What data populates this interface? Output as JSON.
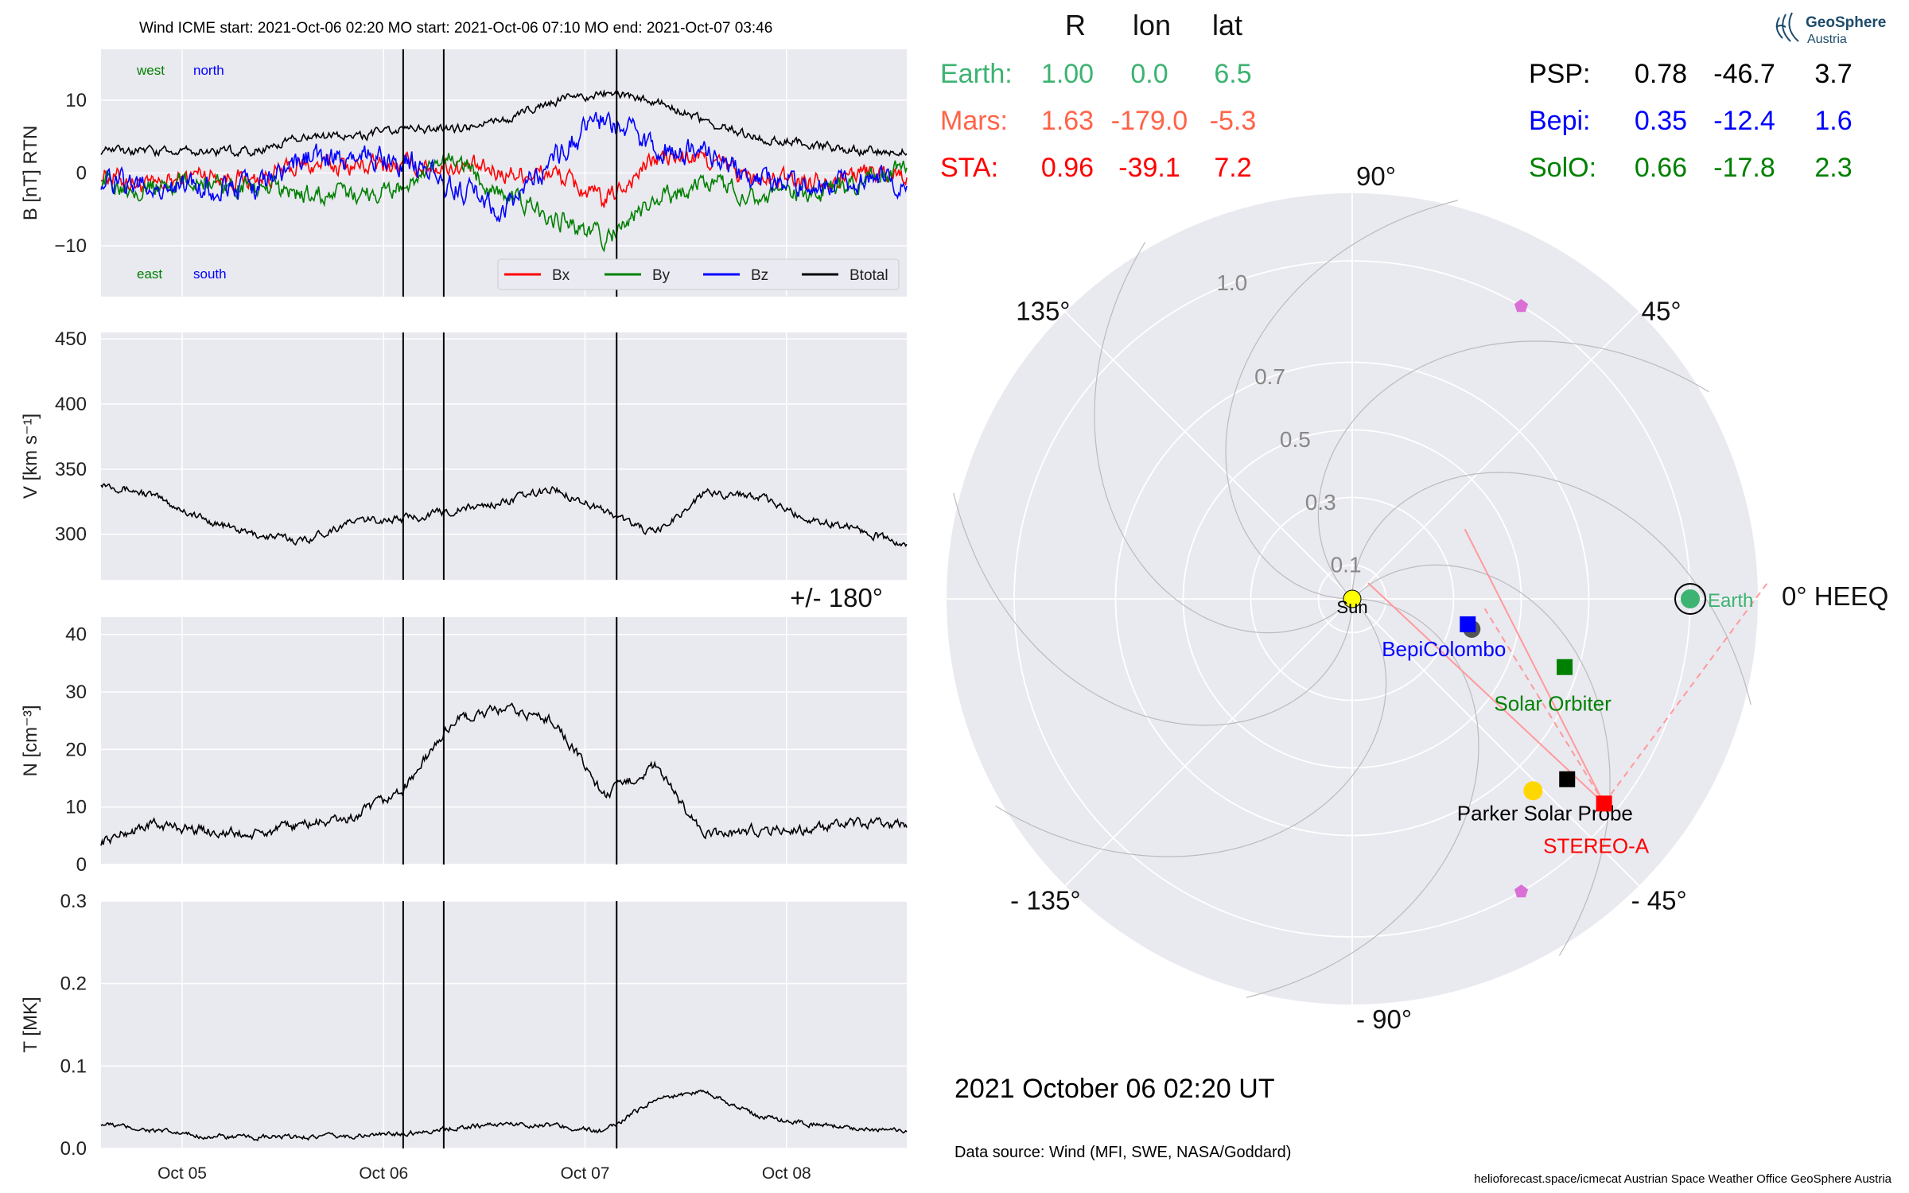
{
  "header": {
    "title": "Wind    ICME start: 2021-Oct-06 02:20   MO start: 2021-Oct-06 07:10   MO end: 2021-Oct-07 03:46"
  },
  "logo": {
    "line1": "GeoSphere",
    "line2": "Austria",
    "icon": "geosphere-swirl-icon"
  },
  "colors": {
    "panel_bg": "#e9e9f0",
    "grid": "#ffffff",
    "bx": "#ff0000",
    "by": "#008000",
    "bz": "#0000ff",
    "btotal": "#000000",
    "earth": "#3cb371",
    "mars": "#ff6347",
    "sta": "#ff0000",
    "psp": "#000000",
    "bepi": "#0000ff",
    "solo": "#008000",
    "sun": "#ffff00",
    "psp_marker": "#ffd700",
    "polar_grid": "#bbbbbb",
    "pentagon": "#da70d6"
  },
  "event_times": [
    "2021-10-06T02:20",
    "2021-10-06T07:10",
    "2021-10-07T03:46"
  ],
  "chart_data": [
    {
      "type": "line",
      "title": "B RTN",
      "ylabel": "B [nT] RTN",
      "xlabels": [
        "Oct 05",
        "Oct 06",
        "Oct 07",
        "Oct 08"
      ],
      "xrange": [
        "2021-10-04T14:20",
        "2021-10-08T14:20"
      ],
      "ylim": [
        -17,
        17
      ],
      "yticks": [
        10,
        0,
        -10
      ],
      "ytick_labels": [
        "10",
        "0",
        "−10"
      ],
      "corner_labels": {
        "west": "west",
        "north": "north",
        "east": "east",
        "south": "south"
      },
      "legend_position": "bottom-right",
      "x_hours": [
        0,
        6,
        12,
        18,
        24,
        30,
        36,
        42,
        48,
        54,
        60,
        66,
        72,
        78,
        84,
        90,
        96
      ],
      "series": [
        {
          "name": "Bx",
          "color_key": "bx",
          "values": [
            0,
            -2,
            0,
            -1,
            1,
            1,
            1,
            1,
            0,
            0,
            -4,
            2,
            2,
            -1,
            -1,
            0,
            0
          ]
        },
        {
          "name": "By",
          "color_key": "by",
          "values": [
            -1,
            -2,
            -1,
            -2,
            -3,
            -3,
            -2,
            2,
            -3,
            -6,
            -9,
            -4,
            -1,
            -3,
            -3,
            -2,
            1
          ]
        },
        {
          "name": "Bz",
          "color_key": "bz",
          "values": [
            -1,
            -2,
            -2,
            -2,
            2,
            2,
            2,
            -2,
            -5,
            2,
            8,
            3,
            3,
            -1,
            -1,
            -1,
            -1
          ]
        },
        {
          "name": "Btotal",
          "color_key": "btotal",
          "values": [
            3,
            3,
            3,
            3,
            5,
            5,
            6,
            6,
            7,
            10,
            11,
            10,
            7,
            5,
            4,
            3,
            3
          ]
        }
      ]
    },
    {
      "type": "line",
      "ylabel": "V [km s⁻¹]",
      "ylim": [
        265,
        455
      ],
      "yticks": [
        450,
        400,
        350,
        300
      ],
      "x_hours": [
        0,
        6,
        12,
        18,
        24,
        30,
        36,
        42,
        48,
        54,
        60,
        66,
        72,
        78,
        84,
        90,
        96
      ],
      "series": [
        {
          "name": "",
          "values": [
            340,
            330,
            312,
            300,
            295,
            310,
            312,
            318,
            325,
            335,
            318,
            300,
            332,
            330,
            312,
            305,
            290
          ]
        }
      ]
    },
    {
      "type": "line",
      "ylabel": "N [cm⁻³]",
      "ylim": [
        0,
        43
      ],
      "yticks": [
        40,
        30,
        20,
        10,
        0
      ],
      "x_hours": [
        0,
        6,
        12,
        18,
        24,
        30,
        36,
        42,
        48,
        54,
        60,
        66,
        72,
        78,
        84,
        90,
        96
      ],
      "series": [
        {
          "name": "",
          "values": [
            4,
            7,
            6,
            5,
            7,
            8,
            13,
            25,
            27,
            25,
            12,
            17,
            5,
            6,
            6,
            7,
            7
          ]
        }
      ]
    },
    {
      "type": "line",
      "ylabel": "T [MK]",
      "ylim": [
        0,
        0.3
      ],
      "yticks": [
        0.3,
        0.2,
        0.1,
        0.0
      ],
      "x_hours": [
        0,
        6,
        12,
        18,
        24,
        30,
        36,
        42,
        48,
        54,
        60,
        66,
        72,
        78,
        84,
        90,
        96
      ],
      "series": [
        {
          "name": "",
          "values": [
            0.03,
            0.022,
            0.015,
            0.013,
            0.014,
            0.015,
            0.018,
            0.025,
            0.03,
            0.028,
            0.02,
            0.06,
            0.07,
            0.04,
            0.03,
            0.025,
            0.02
          ]
        }
      ]
    },
    {
      "type": "polar",
      "rticks": [
        0.1,
        0.3,
        0.5,
        0.7,
        1.0
      ],
      "angle_labels": {
        "0": "0° HEEQ",
        "45": "45°",
        "90": "90°",
        "135": "135°",
        "180": "+/- 180°",
        "-135": "- 135°",
        "-90": "- 90°",
        "-45": "- 45°"
      },
      "bodies": [
        {
          "name": "Sun",
          "r": 0.0,
          "lon": 0.0,
          "marker": "circle",
          "color_key": "sun"
        },
        {
          "name": "Earth",
          "r": 1.0,
          "lon": 0.0,
          "marker": "circle",
          "color_key": "earth"
        },
        {
          "name": "BepiColombo",
          "r": 0.35,
          "lon": -12.4,
          "marker": "square",
          "color_key": "bepi"
        },
        {
          "name": "Solar Orbiter",
          "r": 0.66,
          "lon": -17.8,
          "marker": "square",
          "color_key": "solo"
        },
        {
          "name": "Parker Solar Probe",
          "r": 0.78,
          "lon": -46.7,
          "marker": "circle",
          "color_key": "psp_marker"
        },
        {
          "name": "STEREO-A",
          "r": 0.96,
          "lon": -39.1,
          "marker": "square",
          "color_key": "sta"
        }
      ],
      "table": {
        "headers": [
          "R",
          "lon",
          "lat"
        ],
        "left": [
          {
            "name": "Earth:",
            "R": "1.00",
            "lon": "0.0",
            "lat": "6.5",
            "color_key": "earth"
          },
          {
            "name": "Mars:",
            "R": "1.63",
            "lon": "-179.0",
            "lat": "-5.3",
            "color_key": "mars"
          },
          {
            "name": "STA:",
            "R": "0.96",
            "lon": "-39.1",
            "lat": "7.2",
            "color_key": "sta"
          }
        ],
        "right": [
          {
            "name": "PSP:",
            "R": "0.78",
            "lon": "-46.7",
            "lat": "3.7",
            "color_key": "psp"
          },
          {
            "name": "Bepi:",
            "R": "0.35",
            "lon": "-12.4",
            "lat": "1.6",
            "color_key": "bepi"
          },
          {
            "name": "SolO:",
            "R": "0.66",
            "lon": "-17.8",
            "lat": "2.3",
            "color_key": "solo"
          }
        ]
      }
    }
  ],
  "footer": {
    "datetime": "2021 October 06  02:20 UT",
    "data_source": "Data source: Wind (MFI, SWE, NASA/Goddard)",
    "credits": "helioforecast.space/icmecat   Austrian Space Weather Office   GeoSphere Austria"
  }
}
